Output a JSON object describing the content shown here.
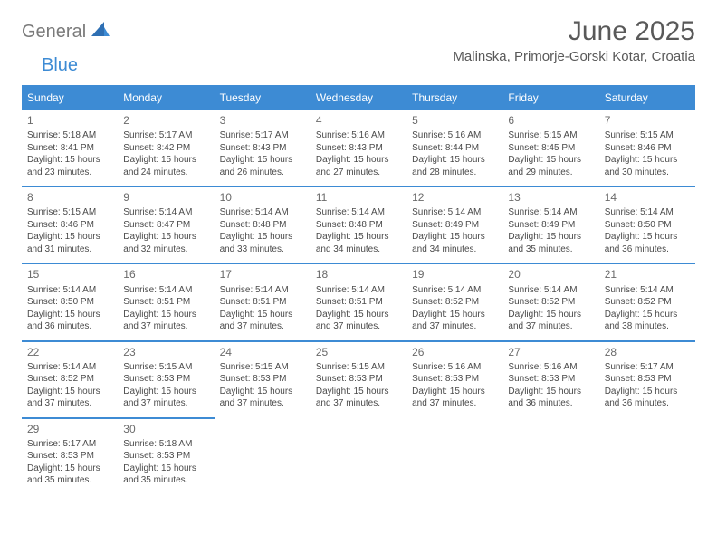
{
  "brand": {
    "part1": "General",
    "part2": "Blue"
  },
  "title": "June 2025",
  "location": "Malinska, Primorje-Gorski Kotar, Croatia",
  "colors": {
    "accent": "#3d8bd4",
    "text": "#4a4a4a",
    "header_text": "#595959"
  },
  "dayNames": [
    "Sunday",
    "Monday",
    "Tuesday",
    "Wednesday",
    "Thursday",
    "Friday",
    "Saturday"
  ],
  "days": [
    {
      "n": "1",
      "sr": "5:18 AM",
      "ss": "8:41 PM",
      "dl": "15 hours and 23 minutes."
    },
    {
      "n": "2",
      "sr": "5:17 AM",
      "ss": "8:42 PM",
      "dl": "15 hours and 24 minutes."
    },
    {
      "n": "3",
      "sr": "5:17 AM",
      "ss": "8:43 PM",
      "dl": "15 hours and 26 minutes."
    },
    {
      "n": "4",
      "sr": "5:16 AM",
      "ss": "8:43 PM",
      "dl": "15 hours and 27 minutes."
    },
    {
      "n": "5",
      "sr": "5:16 AM",
      "ss": "8:44 PM",
      "dl": "15 hours and 28 minutes."
    },
    {
      "n": "6",
      "sr": "5:15 AM",
      "ss": "8:45 PM",
      "dl": "15 hours and 29 minutes."
    },
    {
      "n": "7",
      "sr": "5:15 AM",
      "ss": "8:46 PM",
      "dl": "15 hours and 30 minutes."
    },
    {
      "n": "8",
      "sr": "5:15 AM",
      "ss": "8:46 PM",
      "dl": "15 hours and 31 minutes."
    },
    {
      "n": "9",
      "sr": "5:14 AM",
      "ss": "8:47 PM",
      "dl": "15 hours and 32 minutes."
    },
    {
      "n": "10",
      "sr": "5:14 AM",
      "ss": "8:48 PM",
      "dl": "15 hours and 33 minutes."
    },
    {
      "n": "11",
      "sr": "5:14 AM",
      "ss": "8:48 PM",
      "dl": "15 hours and 34 minutes."
    },
    {
      "n": "12",
      "sr": "5:14 AM",
      "ss": "8:49 PM",
      "dl": "15 hours and 34 minutes."
    },
    {
      "n": "13",
      "sr": "5:14 AM",
      "ss": "8:49 PM",
      "dl": "15 hours and 35 minutes."
    },
    {
      "n": "14",
      "sr": "5:14 AM",
      "ss": "8:50 PM",
      "dl": "15 hours and 36 minutes."
    },
    {
      "n": "15",
      "sr": "5:14 AM",
      "ss": "8:50 PM",
      "dl": "15 hours and 36 minutes."
    },
    {
      "n": "16",
      "sr": "5:14 AM",
      "ss": "8:51 PM",
      "dl": "15 hours and 37 minutes."
    },
    {
      "n": "17",
      "sr": "5:14 AM",
      "ss": "8:51 PM",
      "dl": "15 hours and 37 minutes."
    },
    {
      "n": "18",
      "sr": "5:14 AM",
      "ss": "8:51 PM",
      "dl": "15 hours and 37 minutes."
    },
    {
      "n": "19",
      "sr": "5:14 AM",
      "ss": "8:52 PM",
      "dl": "15 hours and 37 minutes."
    },
    {
      "n": "20",
      "sr": "5:14 AM",
      "ss": "8:52 PM",
      "dl": "15 hours and 37 minutes."
    },
    {
      "n": "21",
      "sr": "5:14 AM",
      "ss": "8:52 PM",
      "dl": "15 hours and 38 minutes."
    },
    {
      "n": "22",
      "sr": "5:14 AM",
      "ss": "8:52 PM",
      "dl": "15 hours and 37 minutes."
    },
    {
      "n": "23",
      "sr": "5:15 AM",
      "ss": "8:53 PM",
      "dl": "15 hours and 37 minutes."
    },
    {
      "n": "24",
      "sr": "5:15 AM",
      "ss": "8:53 PM",
      "dl": "15 hours and 37 minutes."
    },
    {
      "n": "25",
      "sr": "5:15 AM",
      "ss": "8:53 PM",
      "dl": "15 hours and 37 minutes."
    },
    {
      "n": "26",
      "sr": "5:16 AM",
      "ss": "8:53 PM",
      "dl": "15 hours and 37 minutes."
    },
    {
      "n": "27",
      "sr": "5:16 AM",
      "ss": "8:53 PM",
      "dl": "15 hours and 36 minutes."
    },
    {
      "n": "28",
      "sr": "5:17 AM",
      "ss": "8:53 PM",
      "dl": "15 hours and 36 minutes."
    },
    {
      "n": "29",
      "sr": "5:17 AM",
      "ss": "8:53 PM",
      "dl": "15 hours and 35 minutes."
    },
    {
      "n": "30",
      "sr": "5:18 AM",
      "ss": "8:53 PM",
      "dl": "15 hours and 35 minutes."
    }
  ],
  "labels": {
    "sunrise": "Sunrise:",
    "sunset": "Sunset:",
    "daylight": "Daylight:"
  },
  "layout": {
    "start_weekday": 0,
    "days_in_month": 30,
    "cols": 7
  }
}
